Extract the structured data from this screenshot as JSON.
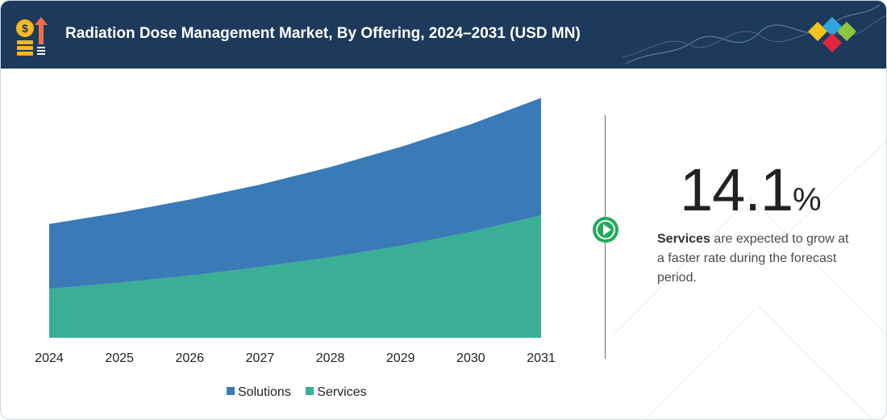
{
  "header": {
    "title": "Radiation Dose Management Market, By Offering, 2024–2031 (USD MN)"
  },
  "highlight": {
    "value": "14.1",
    "unit": "%",
    "segment": "Services",
    "text": " are expected to grow at a faster rate during the forecast period."
  },
  "colors": {
    "header_bg": "#1d3a5c",
    "solutions": "#3a7ab7",
    "services": "#3bae96",
    "accent_green": "#1fab56"
  },
  "chart_data": {
    "type": "area",
    "stacked": true,
    "title": "Radiation Dose Management Market, By Offering, 2024–2031 (USD MN)",
    "xlabel": "",
    "ylabel": "",
    "x": [
      "2024",
      "2025",
      "2026",
      "2027",
      "2028",
      "2029",
      "2030",
      "2031"
    ],
    "series": [
      {
        "name": "Services",
        "color": "#3bae96",
        "values": [
          56,
          63,
          71,
          81,
          92,
          105,
          121,
          140
        ]
      },
      {
        "name": "Solutions",
        "color": "#3a7ab7",
        "values": [
          74,
          80,
          87,
          94,
          103,
          113,
          123,
          134
        ]
      }
    ],
    "ylim": [
      0,
      280
    ],
    "grid": false,
    "legend_position": "bottom",
    "y_axis_visible": false
  }
}
